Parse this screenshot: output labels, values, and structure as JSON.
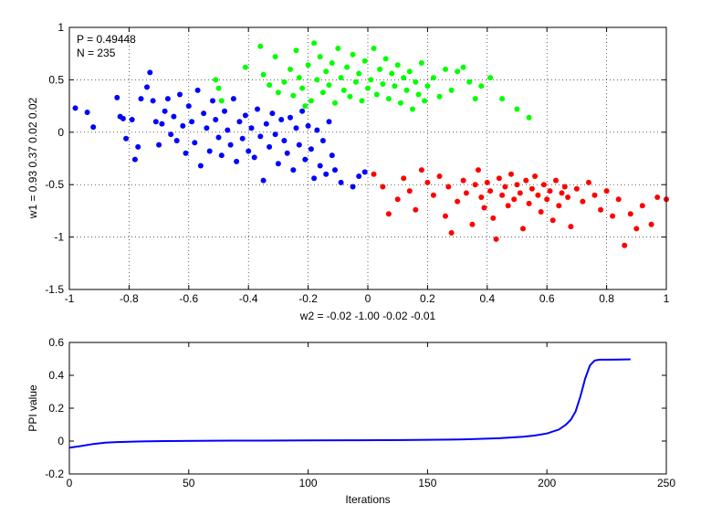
{
  "chart_data": [
    {
      "type": "scatter",
      "title": "",
      "xlabel": "w2 = -0.02  -1.00  -0.02  -0.01",
      "ylabel": "w1 = 0.93  0.37  0.02  0.02",
      "xlim": [
        -1,
        1
      ],
      "ylim": [
        -1.5,
        1
      ],
      "xticks": [
        -1,
        -0.8,
        -0.6,
        -0.4,
        -0.2,
        0,
        0.2,
        0.4,
        0.6,
        0.8,
        1
      ],
      "xtick_labels": [
        "-1",
        "-0.8",
        "-0.6",
        "-0.4",
        "-0.2",
        "0",
        "0.2",
        "0.4",
        "0.6",
        "0.8",
        "1"
      ],
      "yticks": [
        -1.5,
        -1,
        -0.5,
        0,
        0.5,
        1
      ],
      "ytick_labels": [
        "-1.5",
        "-1",
        "-0.5",
        "0",
        "0.5",
        "1"
      ],
      "grid": true,
      "annotations": [
        "P = 0.49448",
        "N = 235"
      ],
      "series": [
        {
          "color": "#0000ff",
          "points": [
            [
              -0.98,
              0.23
            ],
            [
              -0.94,
              0.19
            ],
            [
              -0.92,
              0.05
            ],
            [
              -0.84,
              0.33
            ],
            [
              -0.83,
              0.15
            ],
            [
              -0.82,
              0.13
            ],
            [
              -0.81,
              -0.06
            ],
            [
              -0.79,
              0.12
            ],
            [
              -0.78,
              -0.26
            ],
            [
              -0.77,
              -0.14
            ],
            [
              -0.76,
              0.32
            ],
            [
              -0.74,
              0.43
            ],
            [
              -0.73,
              0.57
            ],
            [
              -0.72,
              0.3
            ],
            [
              -0.71,
              0.1
            ],
            [
              -0.7,
              -0.12
            ],
            [
              -0.69,
              0.08
            ],
            [
              -0.68,
              0.2
            ],
            [
              -0.67,
              0.32
            ],
            [
              -0.66,
              -0.02
            ],
            [
              -0.65,
              0.15
            ],
            [
              -0.64,
              -0.08
            ],
            [
              -0.63,
              0.36
            ],
            [
              -0.62,
              0.06
            ],
            [
              -0.61,
              -0.2
            ],
            [
              -0.6,
              0.25
            ],
            [
              -0.59,
              0.1
            ],
            [
              -0.58,
              -0.1
            ],
            [
              -0.57,
              0.4
            ],
            [
              -0.56,
              -0.32
            ],
            [
              -0.55,
              0.18
            ],
            [
              -0.54,
              0.04
            ],
            [
              -0.53,
              -0.18
            ],
            [
              -0.52,
              0.3
            ],
            [
              -0.51,
              0.12
            ],
            [
              -0.5,
              -0.05
            ],
            [
              -0.49,
              -0.22
            ],
            [
              -0.48,
              0.2
            ],
            [
              -0.47,
              0.02
            ],
            [
              -0.46,
              -0.12
            ],
            [
              -0.45,
              0.32
            ],
            [
              -0.44,
              -0.28
            ],
            [
              -0.43,
              0.1
            ],
            [
              -0.42,
              -0.06
            ],
            [
              -0.41,
              0.16
            ],
            [
              -0.4,
              -0.18
            ],
            [
              -0.39,
              0.04
            ],
            [
              -0.38,
              -0.24
            ],
            [
              -0.37,
              0.22
            ],
            [
              -0.36,
              -0.04
            ],
            [
              -0.35,
              -0.46
            ],
            [
              -0.34,
              0.08
            ],
            [
              -0.33,
              -0.14
            ],
            [
              -0.32,
              0.18
            ],
            [
              -0.31,
              -0.02
            ],
            [
              -0.3,
              -0.3
            ],
            [
              -0.29,
              0.12
            ],
            [
              -0.28,
              -0.08
            ],
            [
              -0.27,
              -0.2
            ],
            [
              -0.26,
              0.14
            ],
            [
              -0.25,
              -0.36
            ],
            [
              -0.24,
              0.04
            ],
            [
              -0.23,
              -0.12
            ],
            [
              -0.22,
              0.2
            ],
            [
              -0.21,
              -0.26
            ],
            [
              -0.2,
              0.06
            ],
            [
              -0.19,
              -0.16
            ],
            [
              -0.18,
              -0.44
            ],
            [
              -0.17,
              0.02
            ],
            [
              -0.16,
              -0.32
            ],
            [
              -0.15,
              -0.08
            ],
            [
              -0.14,
              -0.4
            ],
            [
              -0.13,
              0.1
            ],
            [
              -0.12,
              -0.22
            ],
            [
              -0.11,
              -0.36
            ],
            [
              -0.09,
              -0.48
            ],
            [
              -0.05,
              -0.52
            ],
            [
              -0.03,
              -0.42
            ],
            [
              -0.01,
              -0.38
            ]
          ]
        },
        {
          "color": "#00ff00",
          "points": [
            [
              -0.51,
              0.5
            ],
            [
              -0.5,
              0.42
            ],
            [
              -0.49,
              0.3
            ],
            [
              -0.41,
              0.62
            ],
            [
              -0.36,
              0.82
            ],
            [
              -0.35,
              0.55
            ],
            [
              -0.33,
              0.45
            ],
            [
              -0.31,
              0.72
            ],
            [
              -0.3,
              0.38
            ],
            [
              -0.28,
              0.48
            ],
            [
              -0.26,
              0.6
            ],
            [
              -0.25,
              0.35
            ],
            [
              -0.24,
              0.78
            ],
            [
              -0.23,
              0.52
            ],
            [
              -0.22,
              0.42
            ],
            [
              -0.21,
              0.25
            ],
            [
              -0.2,
              0.64
            ],
            [
              -0.19,
              0.3
            ],
            [
              -0.18,
              0.85
            ],
            [
              -0.17,
              0.5
            ],
            [
              -0.16,
              0.72
            ],
            [
              -0.15,
              0.38
            ],
            [
              -0.14,
              0.58
            ],
            [
              -0.13,
              0.45
            ],
            [
              -0.12,
              0.66
            ],
            [
              -0.11,
              0.28
            ],
            [
              -0.1,
              0.8
            ],
            [
              -0.09,
              0.52
            ],
            [
              -0.08,
              0.4
            ],
            [
              -0.07,
              0.62
            ],
            [
              -0.06,
              0.34
            ],
            [
              -0.05,
              0.74
            ],
            [
              -0.04,
              0.48
            ],
            [
              -0.03,
              0.56
            ],
            [
              -0.02,
              0.3
            ],
            [
              -0.01,
              0.68
            ],
            [
              0,
              0.42
            ],
            [
              0.01,
              0.5
            ],
            [
              0.02,
              0.8
            ],
            [
              0.03,
              0.36
            ],
            [
              0.04,
              0.6
            ],
            [
              0.05,
              0.46
            ],
            [
              0.06,
              0.7
            ],
            [
              0.07,
              0.32
            ],
            [
              0.08,
              0.56
            ],
            [
              0.09,
              0.44
            ],
            [
              0.1,
              0.64
            ],
            [
              0.11,
              0.28
            ],
            [
              0.12,
              0.52
            ],
            [
              0.13,
              0.4
            ],
            [
              0.14,
              0.58
            ],
            [
              0.15,
              0.22
            ],
            [
              0.16,
              0.48
            ],
            [
              0.17,
              0.36
            ],
            [
              0.18,
              0.66
            ],
            [
              0.19,
              0.3
            ],
            [
              0.2,
              0.44
            ],
            [
              0.22,
              0.52
            ],
            [
              0.24,
              0.34
            ],
            [
              0.26,
              0.6
            ],
            [
              0.28,
              0.4
            ],
            [
              0.3,
              0.58
            ],
            [
              0.32,
              0.62
            ],
            [
              0.34,
              0.48
            ],
            [
              0.36,
              0.32
            ],
            [
              0.38,
              0.44
            ],
            [
              0.41,
              0.52
            ],
            [
              0.45,
              0.32
            ],
            [
              0.5,
              0.22
            ],
            [
              0.54,
              0.14
            ]
          ]
        },
        {
          "color": "#ff0000",
          "points": [
            [
              0.02,
              -0.4
            ],
            [
              0.05,
              -0.52
            ],
            [
              0.07,
              -0.78
            ],
            [
              0.1,
              -0.64
            ],
            [
              0.12,
              -0.44
            ],
            [
              0.14,
              -0.56
            ],
            [
              0.16,
              -0.74
            ],
            [
              0.18,
              -0.36
            ],
            [
              0.2,
              -0.48
            ],
            [
              0.22,
              -0.6
            ],
            [
              0.24,
              -0.42
            ],
            [
              0.26,
              -0.8
            ],
            [
              0.27,
              -0.52
            ],
            [
              0.28,
              -0.96
            ],
            [
              0.3,
              -0.66
            ],
            [
              0.32,
              -0.46
            ],
            [
              0.33,
              -0.58
            ],
            [
              0.35,
              -0.88
            ],
            [
              0.36,
              -0.5
            ],
            [
              0.37,
              -0.36
            ],
            [
              0.38,
              -0.62
            ],
            [
              0.39,
              -0.72
            ],
            [
              0.4,
              -0.48
            ],
            [
              0.41,
              -0.56
            ],
            [
              0.42,
              -0.82
            ],
            [
              0.43,
              -1.02
            ],
            [
              0.44,
              -0.44
            ],
            [
              0.45,
              -0.6
            ],
            [
              0.46,
              -0.52
            ],
            [
              0.47,
              -0.7
            ],
            [
              0.48,
              -0.4
            ],
            [
              0.49,
              -0.64
            ],
            [
              0.5,
              -0.5
            ],
            [
              0.51,
              -0.58
            ],
            [
              0.52,
              -0.92
            ],
            [
              0.53,
              -0.46
            ],
            [
              0.54,
              -0.68
            ],
            [
              0.55,
              -0.54
            ],
            [
              0.56,
              -0.42
            ],
            [
              0.57,
              -0.6
            ],
            [
              0.58,
              -0.76
            ],
            [
              0.59,
              -0.5
            ],
            [
              0.6,
              -0.64
            ],
            [
              0.61,
              -0.56
            ],
            [
              0.62,
              -0.84
            ],
            [
              0.63,
              -0.46
            ],
            [
              0.64,
              -0.7
            ],
            [
              0.65,
              -0.58
            ],
            [
              0.66,
              -0.52
            ],
            [
              0.67,
              -0.62
            ],
            [
              0.68,
              -0.9
            ],
            [
              0.7,
              -0.54
            ],
            [
              0.72,
              -0.66
            ],
            [
              0.74,
              -0.48
            ],
            [
              0.76,
              -0.6
            ],
            [
              0.78,
              -0.74
            ],
            [
              0.8,
              -0.56
            ],
            [
              0.82,
              -0.8
            ],
            [
              0.84,
              -0.64
            ],
            [
              0.86,
              -1.08
            ],
            [
              0.88,
              -0.78
            ],
            [
              0.9,
              -0.92
            ],
            [
              0.92,
              -0.7
            ],
            [
              0.95,
              -0.88
            ],
            [
              0.97,
              -0.62
            ],
            [
              1.0,
              -0.64
            ]
          ]
        }
      ]
    },
    {
      "type": "line",
      "title": "",
      "xlabel": "Iterations",
      "ylabel": "PPI value",
      "xlim": [
        0,
        250
      ],
      "ylim": [
        -0.2,
        0.6
      ],
      "xticks": [
        0,
        50,
        100,
        150,
        200,
        250
      ],
      "xtick_labels": [
        "0",
        "50",
        "100",
        "150",
        "200",
        "250"
      ],
      "yticks": [
        -0.2,
        0,
        0.2,
        0.4,
        0.6
      ],
      "ytick_labels": [
        "-0.2",
        "0",
        "0.2",
        "0.4",
        "0.6"
      ],
      "grid": false,
      "series": [
        {
          "color": "#0000ff",
          "x": [
            0,
            5,
            10,
            15,
            20,
            30,
            40,
            60,
            80,
            100,
            120,
            140,
            160,
            170,
            180,
            190,
            195,
            200,
            205,
            208,
            210,
            212,
            214,
            216,
            218,
            220,
            222,
            225,
            230,
            235
          ],
          "y": [
            -0.04,
            -0.03,
            -0.018,
            -0.01,
            -0.006,
            -0.002,
            0.0,
            0.002,
            0.003,
            0.004,
            0.005,
            0.006,
            0.009,
            0.012,
            0.017,
            0.026,
            0.034,
            0.046,
            0.07,
            0.1,
            0.13,
            0.18,
            0.27,
            0.38,
            0.46,
            0.49,
            0.495,
            0.495,
            0.496,
            0.497
          ]
        }
      ]
    }
  ]
}
